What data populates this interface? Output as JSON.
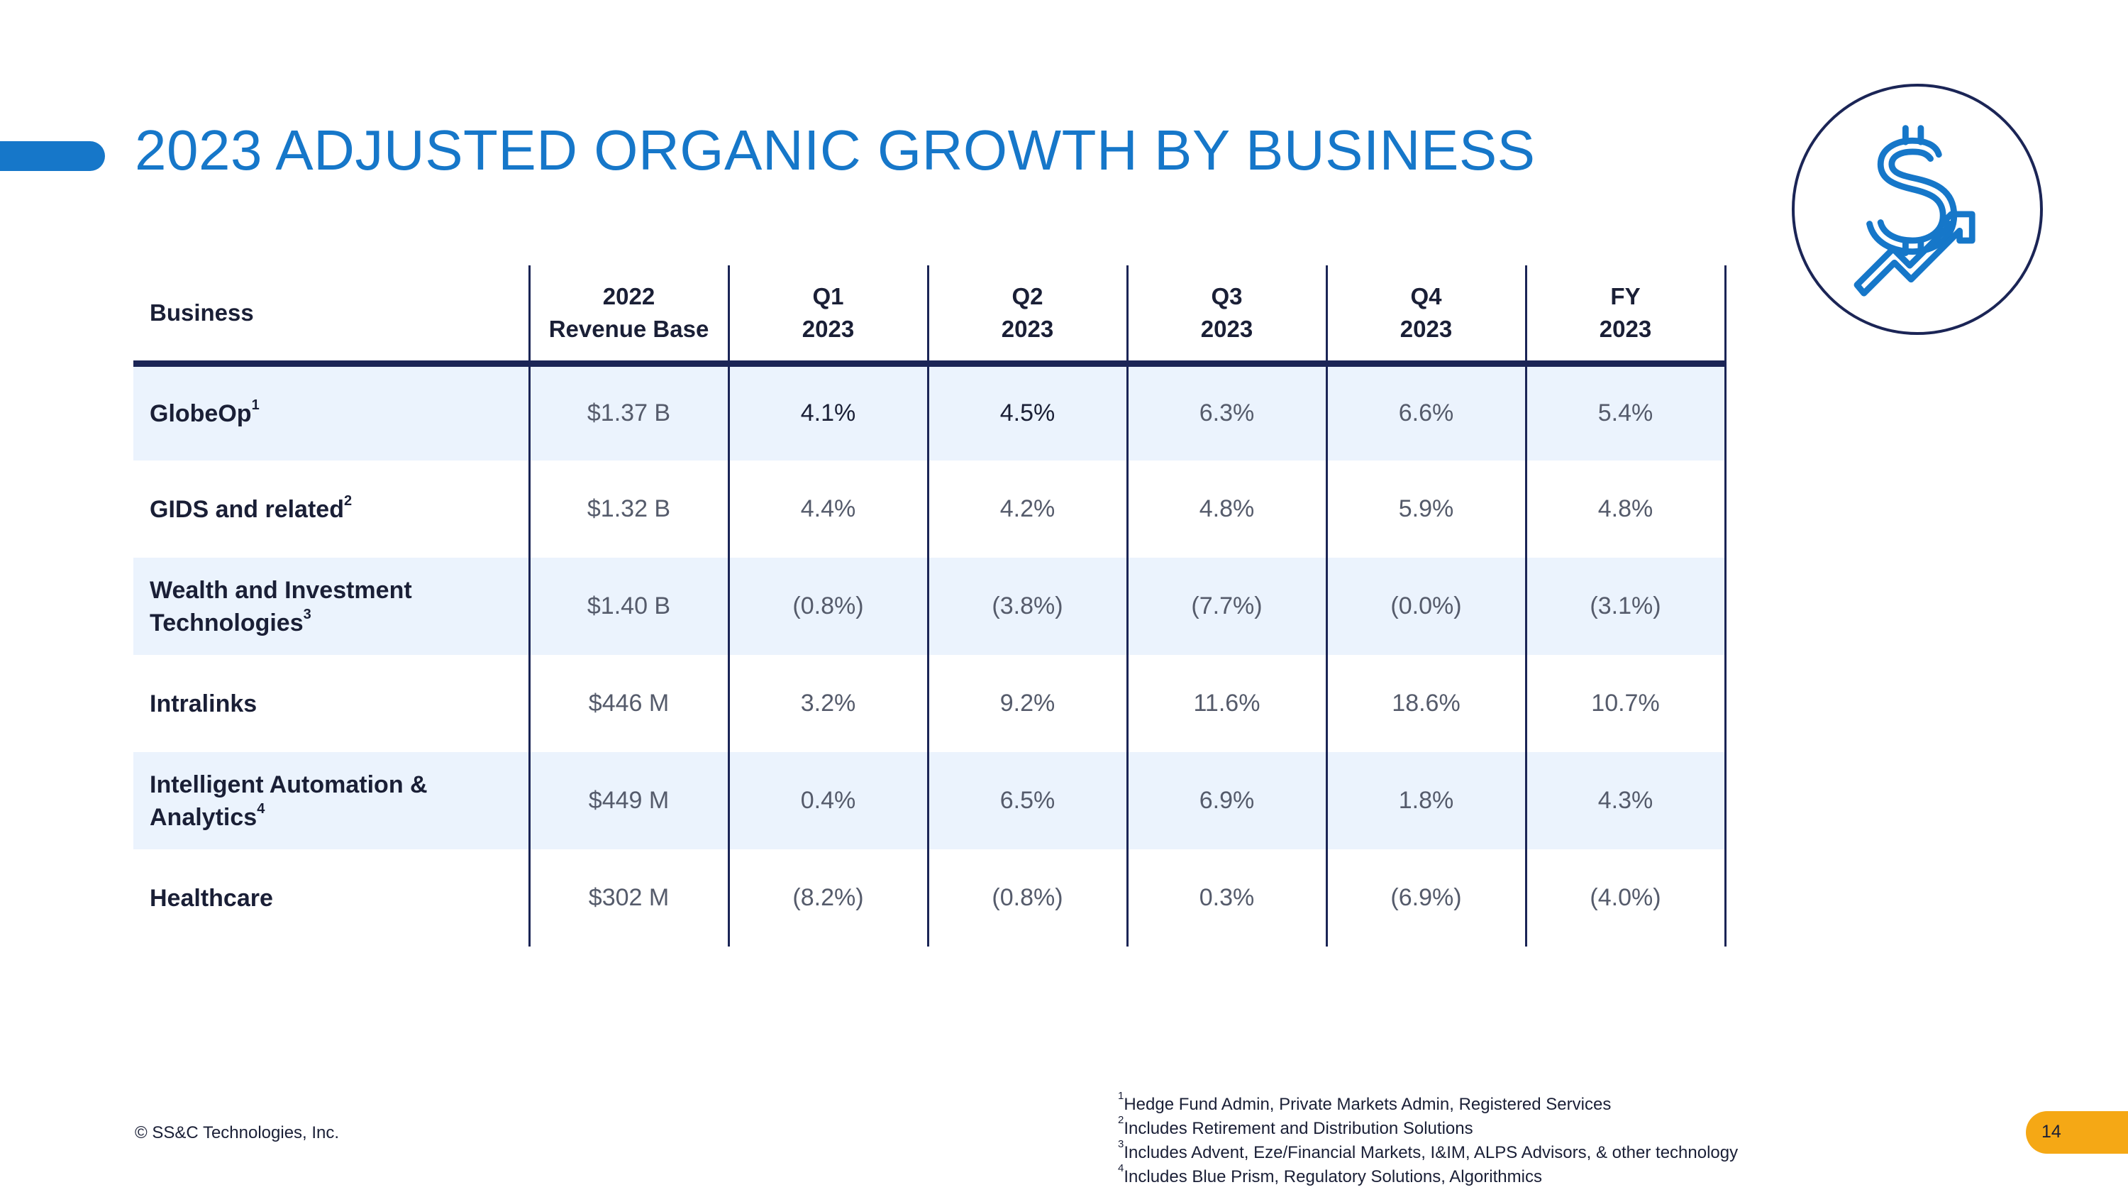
{
  "slide": {
    "title": "2023 ADJUSTED ORGANIC GROWTH BY BUSINESS",
    "copyright": "© SS&C Technologies, Inc.",
    "page_number": "14"
  },
  "colors": {
    "title_blue": "#1677c9",
    "navy": "#1b2556",
    "row_shade": "#ebf3fd",
    "page_badge": "#f5a815"
  },
  "logo": {
    "icon": "dollar-growth-arrow-icon"
  },
  "table": {
    "headers": [
      {
        "line1": "Business",
        "line2": ""
      },
      {
        "line1": "2022",
        "line2": "Revenue Base"
      },
      {
        "line1": "Q1",
        "line2": "2023"
      },
      {
        "line1": "Q2",
        "line2": "2023"
      },
      {
        "line1": "Q3",
        "line2": "2023"
      },
      {
        "line1": "Q4",
        "line2": "2023"
      },
      {
        "line1": "FY",
        "line2": "2023"
      }
    ],
    "rows": [
      {
        "label": "GlobeOp",
        "footnote": "1",
        "base": "$1.37 B",
        "q1": "4.1%",
        "q2": "4.5%",
        "q3": "6.3%",
        "q4": "6.6%",
        "fy": "5.4%"
      },
      {
        "label": "GIDS and related",
        "footnote": "2",
        "base": "$1.32 B",
        "q1": "4.4%",
        "q2": "4.2%",
        "q3": "4.8%",
        "q4": "5.9%",
        "fy": "4.8%"
      },
      {
        "label": "Wealth and Investment Technologies",
        "footnote": "3",
        "base": "$1.40 B",
        "q1": "(0.8%)",
        "q2": "(3.8%)",
        "q3": "(7.7%)",
        "q4": "(0.0%)",
        "fy": "(3.1%)"
      },
      {
        "label": "Intralinks",
        "footnote": "",
        "base": "$446 M",
        "q1": "3.2%",
        "q2": "9.2%",
        "q3": "11.6%",
        "q4": "18.6%",
        "fy": "10.7%"
      },
      {
        "label": "Intelligent Automation & Analytics",
        "footnote": "4",
        "base": "$449 M",
        "q1": "0.4%",
        "q2": "6.5%",
        "q3": "6.9%",
        "q4": "1.8%",
        "fy": "4.3%"
      },
      {
        "label": "Healthcare",
        "footnote": "",
        "base": "$302 M",
        "q1": "(8.2%)",
        "q2": "(0.8%)",
        "q3": "0.3%",
        "q4": "(6.9%)",
        "fy": "(4.0%)"
      }
    ]
  },
  "footnotes": [
    {
      "num": "1",
      "text": "Hedge Fund Admin, Private Markets Admin, Registered Services"
    },
    {
      "num": "2",
      "text": "Includes Retirement and Distribution Solutions"
    },
    {
      "num": "3",
      "text": "Includes Advent, Eze/Financial Markets, I&IM, ALPS Advisors, & other technology"
    },
    {
      "num": "4",
      "text": "Includes Blue Prism, Regulatory Solutions, Algorithmics"
    }
  ]
}
